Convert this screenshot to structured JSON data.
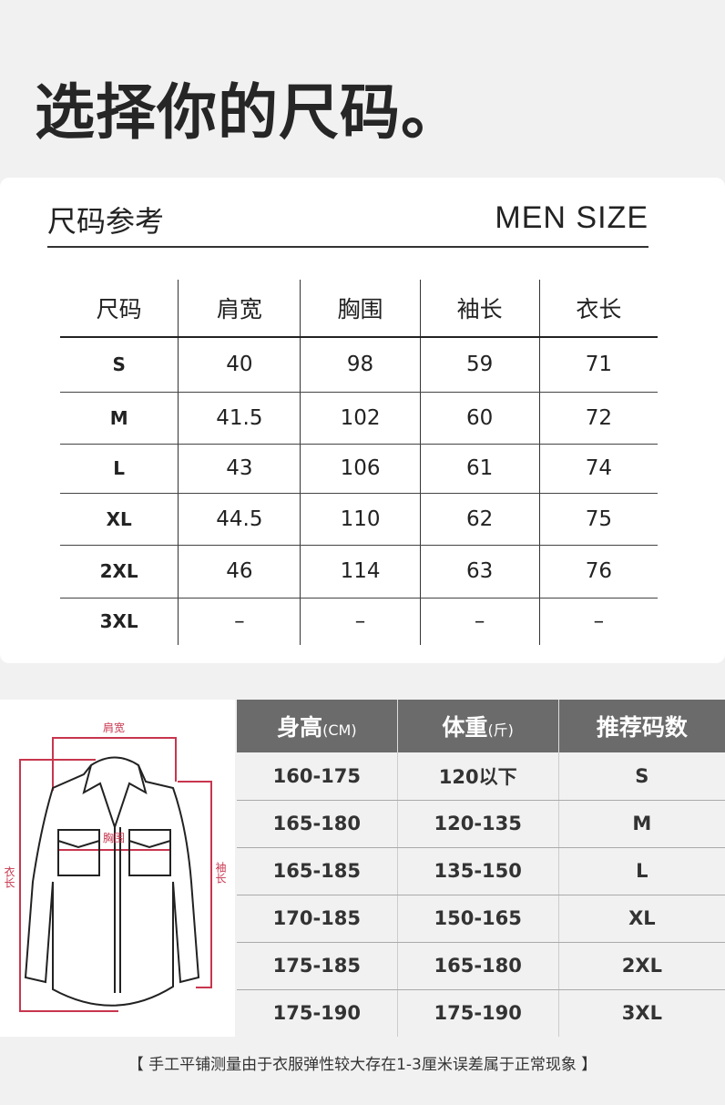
{
  "title": "选择你的尺码。",
  "size_card": {
    "heading": "尺码参考",
    "heading_en": "MEN SIZE",
    "columns": [
      "尺码",
      "肩宽",
      "胸围",
      "袖长",
      "衣长"
    ],
    "rows": [
      [
        "S",
        "40",
        "98",
        "59",
        "71"
      ],
      [
        "M",
        "41.5",
        "102",
        "60",
        "72"
      ],
      [
        "L",
        "43",
        "106",
        "61",
        "74"
      ],
      [
        "XL",
        "44.5",
        "110",
        "62",
        "75"
      ],
      [
        "2XL",
        "46",
        "114",
        "63",
        "76"
      ],
      [
        "3XL",
        "–",
        "–",
        "–",
        "–"
      ]
    ]
  },
  "diagram": {
    "shoulder": "肩宽",
    "chest": "胸围",
    "length": "衣长",
    "sleeve": "袖长",
    "accent": "#c8364e"
  },
  "recommend": {
    "columns": [
      {
        "main": "身高",
        "unit": "(CM)"
      },
      {
        "main": "体重",
        "unit": "(斤)"
      },
      {
        "main": "推荐码数",
        "unit": ""
      }
    ],
    "rows": [
      [
        "160-175",
        "120以下",
        "S"
      ],
      [
        "165-180",
        "120-135",
        "M"
      ],
      [
        "165-185",
        "135-150",
        "L"
      ],
      [
        "170-185",
        "150-165",
        "XL"
      ],
      [
        "175-185",
        "165-180",
        "2XL"
      ],
      [
        "175-190",
        "175-190",
        "3XL"
      ]
    ]
  },
  "note": "【 手工平铺测量由于衣服弹性较大存在1-3厘米误差属于正常现象 】"
}
